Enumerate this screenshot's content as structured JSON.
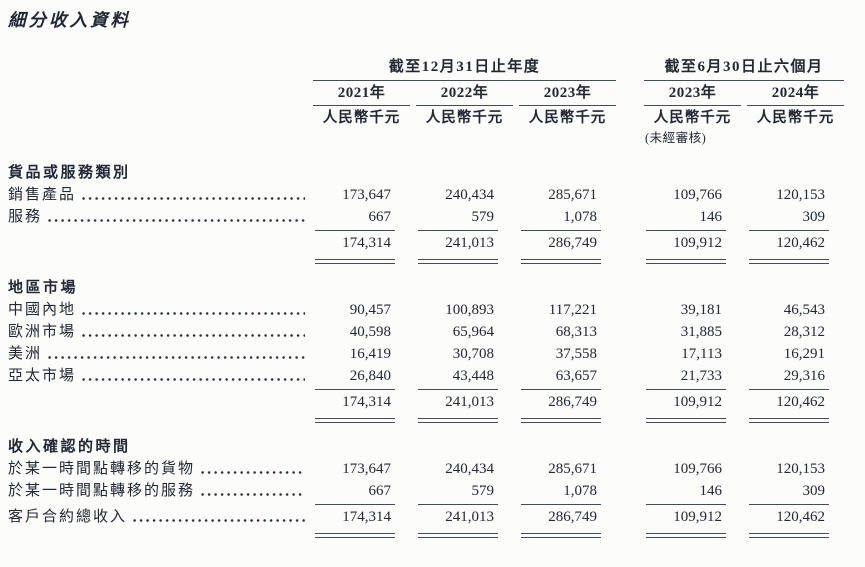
{
  "title": "細分收入資料",
  "table": {
    "col_groups": [
      {
        "label": "截至12月31日止年度",
        "years": [
          "2021年",
          "2022年",
          "2023年"
        ]
      },
      {
        "label": "截至6月30日止六個月",
        "years": [
          "2023年",
          "2024年"
        ]
      }
    ],
    "unit_label": "人民幣千元",
    "unaudited_note": "(未經審核)",
    "sections": [
      {
        "header": "貨品或服務類別",
        "rows": [
          {
            "label": "銷售產品",
            "values": [
              "173,647",
              "240,434",
              "285,671",
              "109,766",
              "120,153"
            ]
          },
          {
            "label": "服務",
            "values": [
              "667",
              "579",
              "1,078",
              "146",
              "309"
            ]
          }
        ],
        "total": {
          "label": "",
          "values": [
            "174,314",
            "241,013",
            "286,749",
            "109,912",
            "120,462"
          ]
        }
      },
      {
        "header": "地區市場",
        "rows": [
          {
            "label": "中國內地",
            "values": [
              "90,457",
              "100,893",
              "117,221",
              "39,181",
              "46,543"
            ]
          },
          {
            "label": "歐洲市場",
            "values": [
              "40,598",
              "65,964",
              "68,313",
              "31,885",
              "28,312"
            ]
          },
          {
            "label": "美洲",
            "values": [
              "16,419",
              "30,708",
              "37,558",
              "17,113",
              "16,291"
            ]
          },
          {
            "label": "亞太市場",
            "values": [
              "26,840",
              "43,448",
              "63,657",
              "21,733",
              "29,316"
            ]
          }
        ],
        "total": {
          "label": "",
          "values": [
            "174,314",
            "241,013",
            "286,749",
            "109,912",
            "120,462"
          ]
        }
      },
      {
        "header": "收入確認的時間",
        "rows": [
          {
            "label": "於某一時間點轉移的貨物",
            "values": [
              "173,647",
              "240,434",
              "285,671",
              "109,766",
              "120,153"
            ]
          },
          {
            "label": "於某一時間點轉移的服務",
            "values": [
              "667",
              "579",
              "1,078",
              "146",
              "309"
            ]
          }
        ],
        "total": {
          "label": "客戶合約總收入",
          "values": [
            "174,314",
            "241,013",
            "286,749",
            "109,912",
            "120,462"
          ]
        }
      }
    ]
  }
}
